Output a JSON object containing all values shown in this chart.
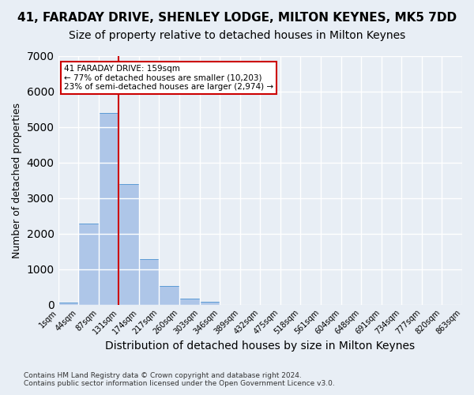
{
  "title_line1": "41, FARADAY DRIVE, SHENLEY LODGE, MILTON KEYNES, MK5 7DD",
  "title_line2": "Size of property relative to detached houses in Milton Keynes",
  "xlabel": "Distribution of detached houses by size in Milton Keynes",
  "ylabel": "Number of detached properties",
  "footnote": "Contains HM Land Registry data © Crown copyright and database right 2024.\nContains public sector information licensed under the Open Government Licence v3.0.",
  "bin_labels": [
    "1sqm",
    "44sqm",
    "87sqm",
    "131sqm",
    "174sqm",
    "217sqm",
    "260sqm",
    "303sqm",
    "346sqm",
    "389sqm",
    "432sqm",
    "475sqm",
    "518sqm",
    "561sqm",
    "604sqm",
    "648sqm",
    "691sqm",
    "734sqm",
    "777sqm",
    "820sqm",
    "863sqm"
  ],
  "bar_values": [
    50,
    2280,
    5380,
    3380,
    1280,
    520,
    160,
    75,
    0,
    0,
    0,
    0,
    0,
    0,
    0,
    0,
    0,
    0,
    0,
    0
  ],
  "bar_color": "#aec6e8",
  "bar_edge_color": "#5b9bd5",
  "vline_x": 3.0,
  "annotation_text": "41 FARADAY DRIVE: 159sqm\n← 77% of detached houses are smaller (10,203)\n23% of semi-detached houses are larger (2,974) →",
  "annotation_box_color": "#ffffff",
  "annotation_box_edge_color": "#cc0000",
  "vline_color": "#cc0000",
  "ylim": [
    0,
    7000
  ],
  "yticks": [
    0,
    1000,
    2000,
    3000,
    4000,
    5000,
    6000,
    7000
  ],
  "background_color": "#e8eef5",
  "plot_background_color": "#e8eef5",
  "grid_color": "#ffffff",
  "title1_fontsize": 11,
  "title2_fontsize": 10,
  "xlabel_fontsize": 10,
  "ylabel_fontsize": 9
}
